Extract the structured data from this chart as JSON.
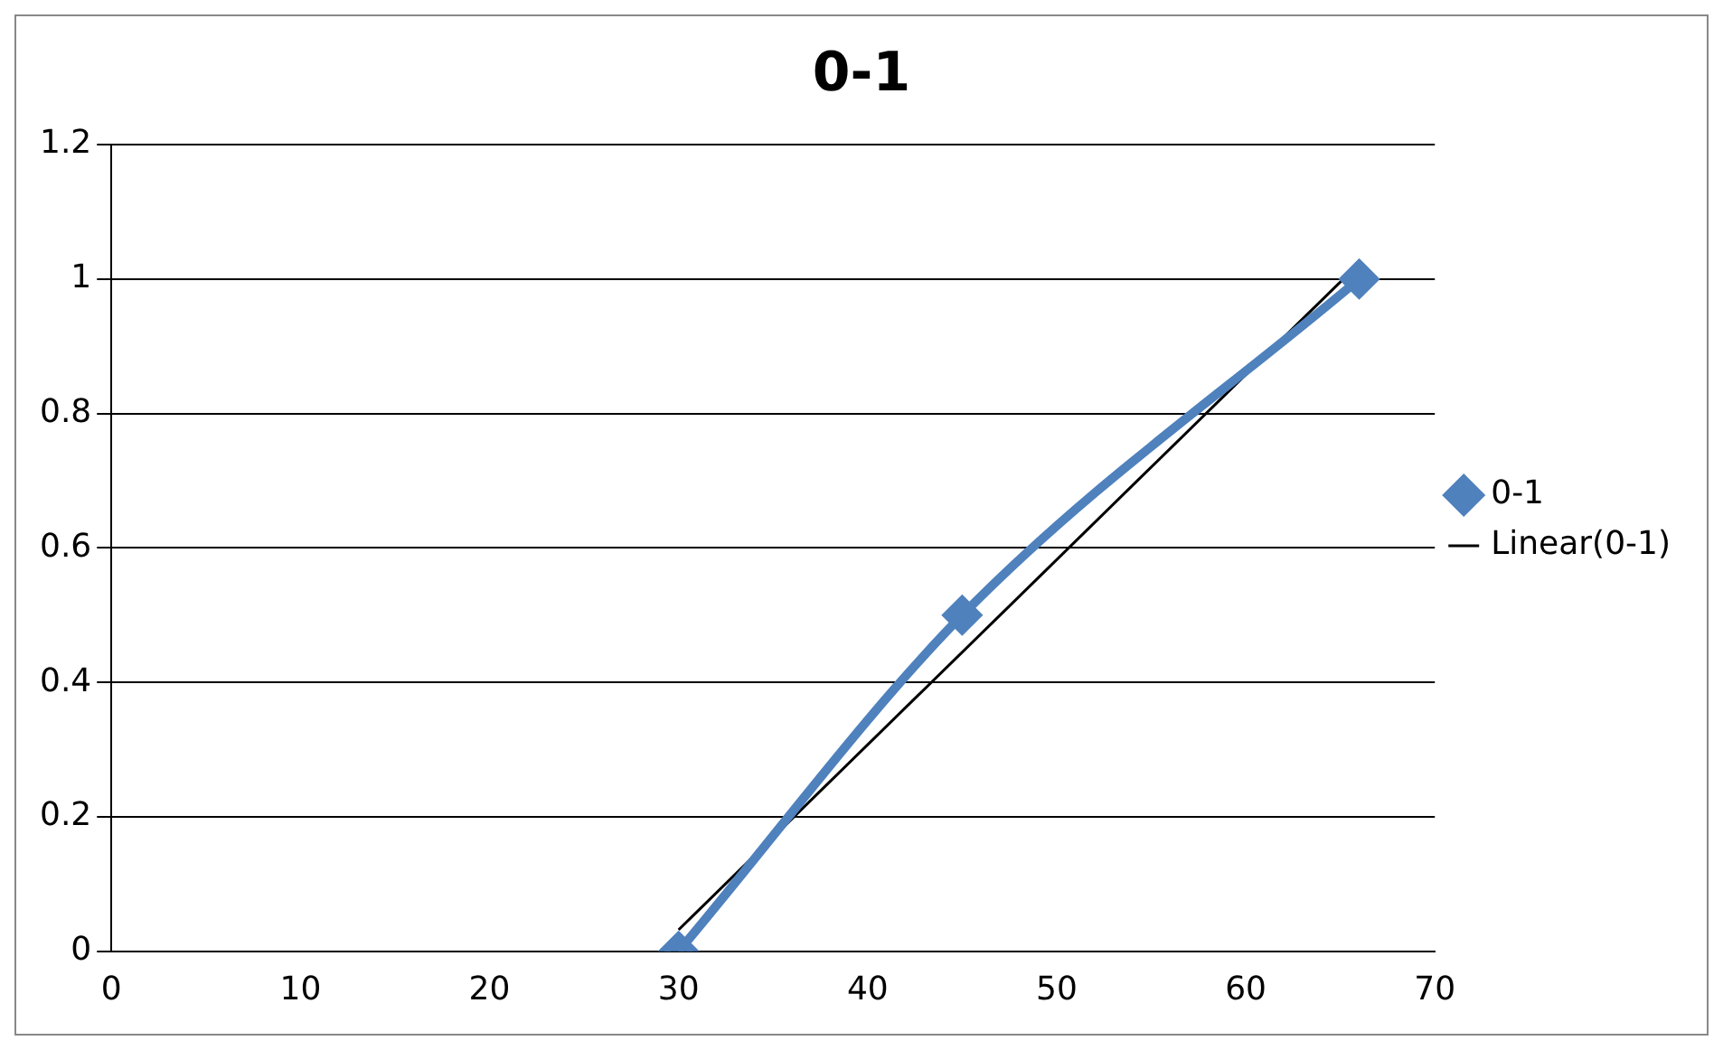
{
  "chart_data": {
    "type": "line",
    "title": "0-1",
    "series": [
      {
        "name": "0-1",
        "color": "#4f81bd",
        "x": [
          30,
          45,
          66
        ],
        "values": [
          0,
          0.5,
          1
        ],
        "marker": "diamond"
      },
      {
        "name": "Linear(0-1)",
        "color": "#000000",
        "type": "line",
        "x": [
          30,
          66
        ],
        "values": [
          0.032,
          1.023
        ],
        "marker": "none"
      }
    ],
    "xlim": [
      0,
      70
    ],
    "xticks": [
      0,
      10,
      20,
      30,
      40,
      50,
      60,
      70
    ],
    "ylim": [
      0,
      1.2
    ],
    "yticks": [
      0,
      0.2,
      0.4,
      0.6,
      0.8,
      1,
      1.2
    ],
    "grid": "y",
    "legend": "right"
  }
}
